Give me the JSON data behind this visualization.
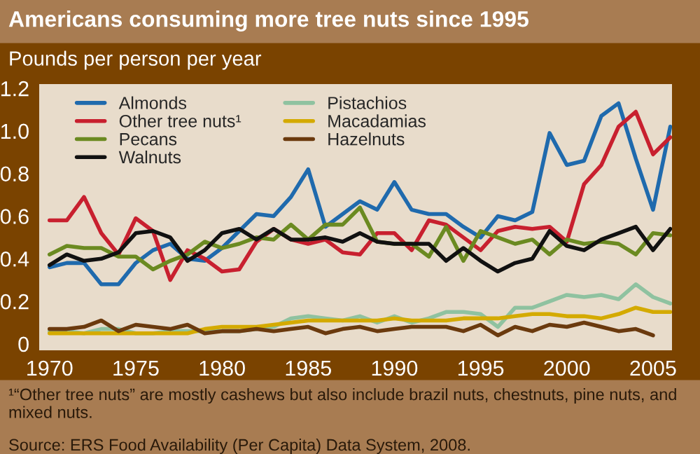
{
  "chart_data": {
    "type": "line",
    "title": "Americans consuming more tree nuts since 1995",
    "ylabel": "Pounds per person per year",
    "x": [
      1970,
      1971,
      1972,
      1973,
      1974,
      1975,
      1976,
      1977,
      1978,
      1979,
      1980,
      1981,
      1982,
      1983,
      1984,
      1985,
      1986,
      1987,
      1988,
      1989,
      1990,
      1991,
      1992,
      1993,
      1994,
      1995,
      1996,
      1997,
      1998,
      1999,
      2000,
      2001,
      2002,
      2003,
      2004,
      2005,
      2006
    ],
    "series": [
      {
        "name": "Almonds",
        "color": "#1f6aad",
        "values": [
          0.36,
          0.38,
          0.38,
          0.28,
          0.28,
          0.38,
          0.44,
          0.47,
          0.4,
          0.39,
          0.45,
          0.53,
          0.61,
          0.6,
          0.69,
          0.82,
          0.55,
          0.61,
          0.67,
          0.63,
          0.76,
          0.63,
          0.61,
          0.61,
          0.55,
          0.5,
          0.6,
          0.58,
          0.62,
          0.99,
          0.84,
          0.86,
          1.07,
          1.13,
          0.87,
          0.63,
          1.02
        ]
      },
      {
        "name": "Other tree nuts¹",
        "color": "#c8202f",
        "values": [
          0.58,
          0.58,
          0.69,
          0.52,
          0.42,
          0.59,
          0.53,
          0.3,
          0.44,
          0.4,
          0.34,
          0.35,
          0.48,
          0.54,
          0.49,
          0.47,
          0.49,
          0.43,
          0.42,
          0.52,
          0.52,
          0.44,
          0.58,
          0.56,
          0.5,
          0.44,
          0.53,
          0.55,
          0.54,
          0.55,
          0.48,
          0.75,
          0.84,
          1.02,
          1.09,
          0.89,
          0.97
        ]
      },
      {
        "name": "Pecans",
        "color": "#6b8a21",
        "values": [
          0.42,
          0.46,
          0.45,
          0.45,
          0.41,
          0.41,
          0.35,
          0.39,
          0.42,
          0.48,
          0.45,
          0.47,
          0.5,
          0.49,
          0.56,
          0.49,
          0.56,
          0.56,
          0.64,
          0.48,
          0.47,
          0.47,
          0.41,
          0.55,
          0.39,
          0.53,
          0.5,
          0.47,
          0.49,
          0.42,
          0.49,
          0.47,
          0.48,
          0.47,
          0.42,
          0.52,
          0.51
        ]
      },
      {
        "name": "Walnuts",
        "color": "#111111",
        "values": [
          0.37,
          0.42,
          0.39,
          0.4,
          0.43,
          0.52,
          0.53,
          0.5,
          0.39,
          0.44,
          0.52,
          0.54,
          0.49,
          0.54,
          0.49,
          0.49,
          0.5,
          0.48,
          0.52,
          0.48,
          0.47,
          0.47,
          0.47,
          0.39,
          0.45,
          0.39,
          0.34,
          0.38,
          0.4,
          0.53,
          0.46,
          0.44,
          0.49,
          0.52,
          0.55,
          0.44,
          0.54
        ]
      },
      {
        "name": "Pistachios",
        "color": "#8fc2a0",
        "values": [
          0.06,
          0.06,
          0.05,
          0.07,
          0.07,
          0.05,
          0.05,
          0.06,
          0.06,
          0.06,
          null,
          0.06,
          0.07,
          0.08,
          0.12,
          0.13,
          0.12,
          0.11,
          0.13,
          0.1,
          0.13,
          0.1,
          0.12,
          0.15,
          0.15,
          0.14,
          0.08,
          0.17,
          0.17,
          0.2,
          0.23,
          0.22,
          0.23,
          0.21,
          0.28,
          0.22,
          0.19
        ]
      },
      {
        "name": "Macadamias",
        "color": "#d4aa00",
        "values": [
          0.05,
          0.05,
          0.05,
          0.05,
          0.05,
          0.05,
          0.05,
          0.05,
          0.05,
          0.07,
          0.08,
          0.08,
          0.08,
          0.09,
          0.1,
          0.11,
          0.11,
          0.11,
          0.11,
          0.11,
          0.12,
          0.11,
          0.11,
          0.11,
          0.12,
          0.12,
          0.12,
          0.13,
          0.14,
          0.14,
          0.13,
          0.13,
          0.12,
          0.14,
          0.17,
          0.15,
          0.15
        ]
      },
      {
        "name": "Hazelnuts",
        "color": "#6b3a0e",
        "values": [
          0.07,
          0.07,
          0.08,
          0.11,
          0.06,
          0.09,
          0.08,
          0.07,
          0.09,
          0.05,
          0.06,
          0.06,
          0.07,
          0.06,
          0.07,
          0.08,
          0.05,
          0.07,
          0.08,
          0.06,
          0.07,
          0.08,
          0.08,
          0.08,
          0.06,
          0.09,
          0.04,
          0.08,
          0.06,
          0.09,
          0.08,
          0.1,
          0.08,
          0.06,
          0.07,
          0.04,
          null
        ]
      }
    ],
    "xlim": [
      1969.4,
      2006.1
    ],
    "xticks": [
      1970,
      1975,
      1980,
      1985,
      1990,
      1995,
      2000,
      2005
    ],
    "ylim": [
      -0.03,
      1.22
    ],
    "yticks": [
      0,
      0.2,
      0.4,
      0.6,
      0.8,
      {
        "value": 1,
        "label": "1.0"
      },
      1.2
    ],
    "grid": false,
    "legend": "top left",
    "annotations": [
      "¹“Other tree nuts” are mostly cashews but also include brazil nuts, chestnuts, pine nuts, and mixed nuts.",
      "Source: ERS Food Availability (Per Capita) Data System, 2008."
    ]
  }
}
